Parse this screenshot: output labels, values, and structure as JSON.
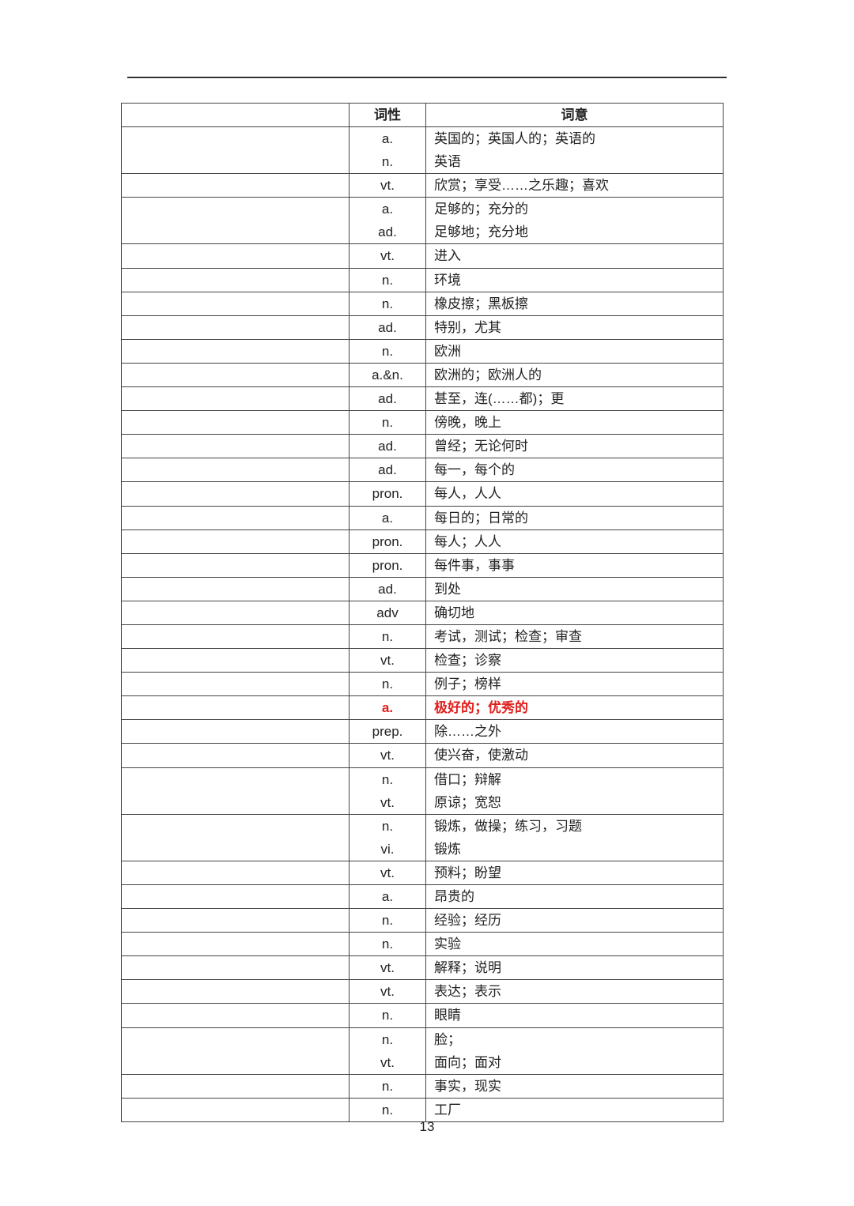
{
  "header": {
    "col1": "",
    "pos": "词性",
    "meaning": "词意"
  },
  "highlight_color": "#e0201c",
  "rows": [
    {
      "lines": [
        {
          "pos": "a.",
          "meaning": "英国的；英国人的；英语的"
        },
        {
          "pos": "n.",
          "meaning": "英语"
        }
      ]
    },
    {
      "lines": [
        {
          "pos": "vt.",
          "meaning": "欣赏；享受……之乐趣；喜欢"
        }
      ]
    },
    {
      "lines": [
        {
          "pos": "a.",
          "meaning": "足够的；充分的"
        },
        {
          "pos": "ad.",
          "meaning": "足够地；充分地"
        }
      ]
    },
    {
      "lines": [
        {
          "pos": "vt.",
          "meaning": "进入"
        }
      ]
    },
    {
      "lines": [
        {
          "pos": "n.",
          "meaning": "环境"
        }
      ]
    },
    {
      "lines": [
        {
          "pos": "n.",
          "meaning": "橡皮擦；黑板擦"
        }
      ]
    },
    {
      "lines": [
        {
          "pos": "ad.",
          "meaning": "特别，尤其"
        }
      ]
    },
    {
      "lines": [
        {
          "pos": "n.",
          "meaning": "欧洲"
        }
      ]
    },
    {
      "lines": [
        {
          "pos": "a.&n.",
          "meaning": "欧洲的；欧洲人的"
        }
      ]
    },
    {
      "lines": [
        {
          "pos": "ad.",
          "meaning": "甚至，连(……都)；更"
        }
      ]
    },
    {
      "lines": [
        {
          "pos": "n.",
          "meaning": "傍晚，晚上"
        }
      ]
    },
    {
      "lines": [
        {
          "pos": "ad.",
          "meaning": "曾经；无论何时"
        }
      ]
    },
    {
      "lines": [
        {
          "pos": "ad.",
          "meaning": "每一，每个的"
        }
      ]
    },
    {
      "lines": [
        {
          "pos": "pron.",
          "meaning": "每人，人人"
        }
      ]
    },
    {
      "lines": [
        {
          "pos": "a.",
          "meaning": "每日的；日常的"
        }
      ]
    },
    {
      "lines": [
        {
          "pos": "pron.",
          "meaning": "每人；人人"
        }
      ]
    },
    {
      "lines": [
        {
          "pos": "pron.",
          "meaning": "每件事，事事"
        }
      ]
    },
    {
      "lines": [
        {
          "pos": "ad.",
          "meaning": "到处"
        }
      ]
    },
    {
      "lines": [
        {
          "pos": "adv",
          "meaning": "确切地"
        }
      ]
    },
    {
      "lines": [
        {
          "pos": "n.",
          "meaning": "考试，测试；检查；审查"
        }
      ]
    },
    {
      "lines": [
        {
          "pos": "vt.",
          "meaning": "检查；诊察"
        }
      ]
    },
    {
      "lines": [
        {
          "pos": "n.",
          "meaning": "例子；榜样"
        }
      ]
    },
    {
      "lines": [
        {
          "pos": "a.",
          "meaning": "极好的；优秀的"
        }
      ],
      "highlighted": true
    },
    {
      "lines": [
        {
          "pos": "prep.",
          "meaning": "除……之外"
        }
      ]
    },
    {
      "lines": [
        {
          "pos": "vt.",
          "meaning": "使兴奋，使激动"
        }
      ]
    },
    {
      "lines": [
        {
          "pos": "n.",
          "meaning": "借口；辩解"
        },
        {
          "pos": "vt.",
          "meaning": "原谅；宽恕"
        }
      ]
    },
    {
      "lines": [
        {
          "pos": "n.",
          "meaning": "锻炼，做操；练习，习题"
        },
        {
          "pos": "vi.",
          "meaning": "锻炼"
        }
      ]
    },
    {
      "lines": [
        {
          "pos": "vt.",
          "meaning": "预料；盼望"
        }
      ]
    },
    {
      "lines": [
        {
          "pos": "a.",
          "meaning": "昂贵的"
        }
      ]
    },
    {
      "lines": [
        {
          "pos": "n.",
          "meaning": "经验；经历"
        }
      ]
    },
    {
      "lines": [
        {
          "pos": "n.",
          "meaning": "实验"
        }
      ]
    },
    {
      "lines": [
        {
          "pos": "vt.",
          "meaning": "解释；说明"
        }
      ]
    },
    {
      "lines": [
        {
          "pos": "vt.",
          "meaning": "表达；表示"
        }
      ]
    },
    {
      "lines": [
        {
          "pos": "n.",
          "meaning": "眼睛"
        }
      ]
    },
    {
      "lines": [
        {
          "pos": "n.",
          "meaning": "脸；"
        },
        {
          "pos": "vt.",
          "meaning": "面向；面对"
        }
      ]
    },
    {
      "lines": [
        {
          "pos": "n.",
          "meaning": "事实，现实"
        }
      ]
    },
    {
      "lines": [
        {
          "pos": "n.",
          "meaning": "工厂"
        }
      ]
    }
  ],
  "page_number": "13"
}
